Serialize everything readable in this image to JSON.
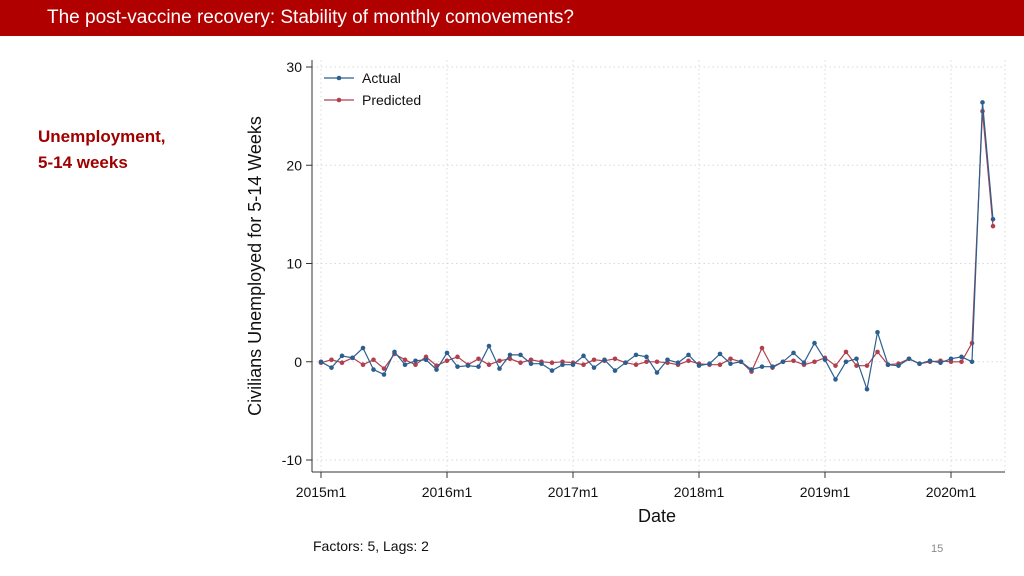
{
  "header": {
    "title": "The post-vaccine recovery: Stability of monthly comovements?"
  },
  "sidebar": {
    "label_line1": "Unemployment,",
    "label_line2": "5-14 weeks"
  },
  "footer": {
    "note": "Factors: 5, Lags: 2",
    "page_number": "15"
  },
  "colors": {
    "accent": "#b00000",
    "actual": "#2c5f8f",
    "predicted": "#b0404e",
    "grid": "#d9d9d9"
  },
  "chart_data": {
    "type": "line",
    "title": "",
    "xlabel": "Date",
    "ylabel": "Civilians Unemployed for 5-14 Weeks",
    "ylim": [
      -10,
      30
    ],
    "yticks": [
      -10,
      0,
      10,
      20,
      30
    ],
    "xlim": [
      0,
      64
    ],
    "xticks": [
      {
        "pos": 0,
        "label": "2015m1"
      },
      {
        "pos": 12,
        "label": "2016m1"
      },
      {
        "pos": 24,
        "label": "2017m1"
      },
      {
        "pos": 36,
        "label": "2018m1"
      },
      {
        "pos": 48,
        "label": "2019m1"
      },
      {
        "pos": 60,
        "label": "2020m1"
      }
    ],
    "grid": true,
    "legend_position": "top-left",
    "series": [
      {
        "name": "Actual",
        "values": [
          0.0,
          -0.6,
          0.6,
          0.4,
          1.4,
          -0.8,
          -1.3,
          1.0,
          -0.3,
          0.1,
          0.2,
          -0.8,
          0.9,
          -0.5,
          -0.4,
          -0.5,
          1.6,
          -0.7,
          0.7,
          0.7,
          -0.2,
          -0.2,
          -0.9,
          -0.3,
          -0.3,
          0.6,
          -0.6,
          0.2,
          -0.9,
          -0.1,
          0.7,
          0.5,
          -1.1,
          0.2,
          -0.1,
          0.7,
          -0.4,
          -0.2,
          0.8,
          -0.2,
          0.0,
          -0.8,
          -0.5,
          -0.5,
          0.0,
          0.9,
          -0.1,
          1.9,
          0.2,
          -1.8,
          0.0,
          0.3,
          -2.8,
          3.0,
          -0.3,
          -0.4,
          0.3,
          -0.2,
          0.1,
          -0.1,
          0.3,
          0.5,
          0.0,
          26.4,
          14.5
        ]
      },
      {
        "name": "Predicted",
        "values": [
          -0.1,
          0.2,
          -0.1,
          0.4,
          -0.3,
          0.2,
          -0.7,
          0.8,
          0.2,
          -0.3,
          0.5,
          -0.4,
          0.1,
          0.5,
          -0.3,
          0.3,
          -0.3,
          0.1,
          0.3,
          -0.1,
          0.2,
          0.0,
          -0.1,
          0.0,
          -0.1,
          -0.3,
          0.2,
          0.1,
          0.3,
          -0.1,
          -0.3,
          0.0,
          0.0,
          -0.1,
          -0.3,
          0.1,
          -0.2,
          -0.3,
          -0.3,
          0.3,
          0.0,
          -1.0,
          1.4,
          -0.6,
          0.0,
          0.1,
          -0.3,
          0.0,
          0.4,
          -0.4,
          1.0,
          -0.4,
          -0.4,
          1.0,
          -0.3,
          -0.2,
          0.3,
          -0.2,
          0.0,
          0.1,
          0.0,
          0.0,
          1.9,
          25.5,
          13.8
        ]
      }
    ]
  }
}
